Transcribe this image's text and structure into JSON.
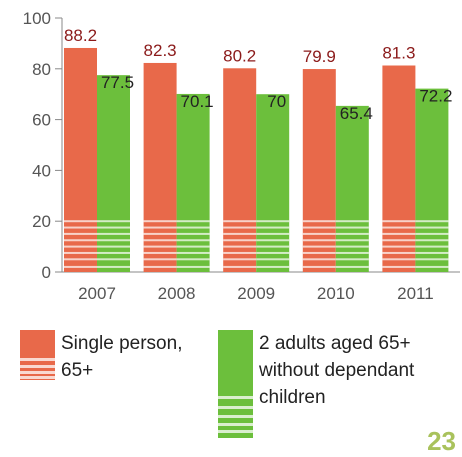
{
  "chart_data": {
    "type": "bar",
    "categories": [
      "2007",
      "2008",
      "2009",
      "2010",
      "2011"
    ],
    "series": [
      {
        "name": "Single person, 65+",
        "values": [
          88.2,
          82.3,
          80.2,
          79.9,
          81.3
        ],
        "color": "#e8694a",
        "label_color": "#8b1a1a"
      },
      {
        "name": "2 adults aged 65+ without dependant children",
        "values": [
          77.5,
          70.1,
          70,
          65.4,
          72.2
        ],
        "color": "#6cbf3c",
        "label_color": "#222222"
      }
    ],
    "value_labels": [
      [
        "88.2",
        "82.3",
        "80.2",
        "79.9",
        "81.3"
      ],
      [
        "77.5",
        "70.1",
        "70",
        "65.4",
        "72.2"
      ]
    ],
    "ylim": [
      0,
      100
    ],
    "yticks": [
      "0",
      "20",
      "40",
      "60",
      "80",
      "100"
    ],
    "grid": false,
    "legend_position": "bottom",
    "title": "",
    "xlabel": "",
    "ylabel": ""
  },
  "legend": {
    "items": [
      {
        "lines": [
          "Single person,",
          "65+"
        ],
        "color": "#e8694a"
      },
      {
        "lines": [
          "2 adults aged 65+",
          "without dependant",
          "children"
        ],
        "color": "#6cbf3c"
      }
    ]
  },
  "page_number": "23"
}
